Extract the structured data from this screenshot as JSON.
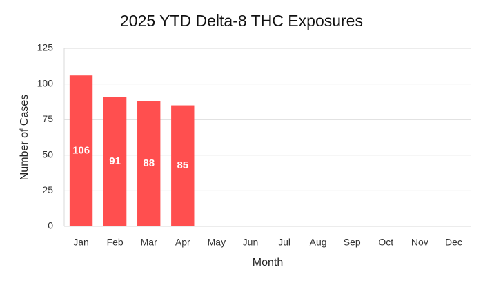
{
  "chart_data": {
    "type": "bar",
    "title": "2025 YTD Delta-8 THC Exposures",
    "x_label": "Month",
    "y_label": "Number of Cases",
    "categories": [
      "Jan",
      "Feb",
      "Mar",
      "Apr",
      "May",
      "Jun",
      "Jul",
      "Aug",
      "Sep",
      "Oct",
      "Nov",
      "Dec"
    ],
    "values": [
      106,
      91,
      88,
      85,
      null,
      null,
      null,
      null,
      null,
      null,
      null,
      null
    ],
    "color": "#ff4f4f",
    "ylim": [
      0,
      125
    ],
    "yticks": [
      0,
      25,
      50,
      75,
      100,
      125
    ],
    "grid": true
  }
}
